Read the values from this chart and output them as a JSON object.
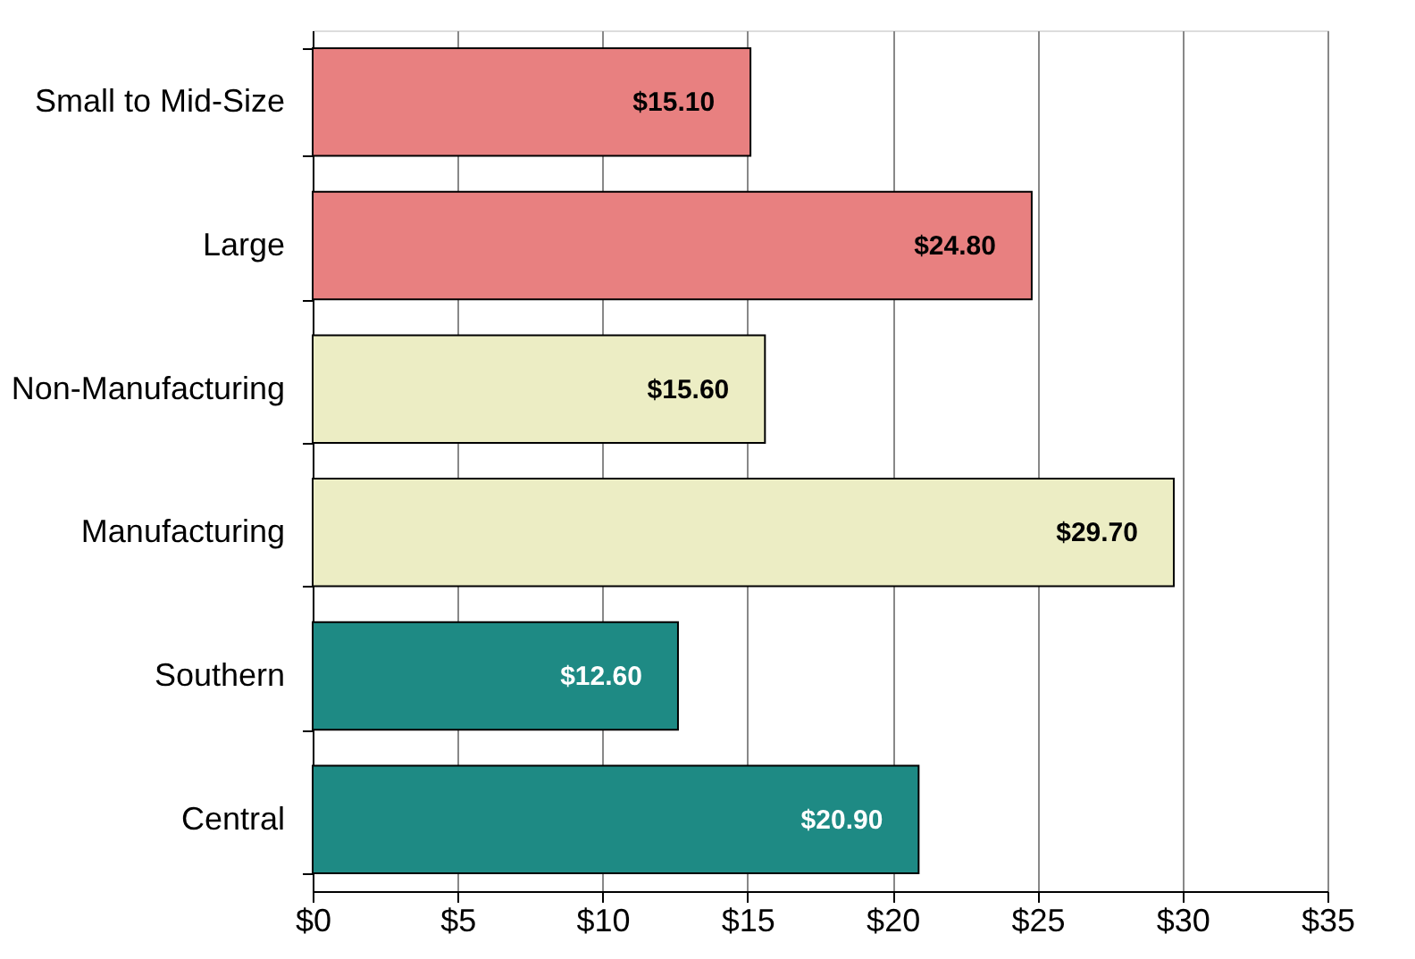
{
  "chart_data": {
    "type": "bar",
    "orientation": "horizontal",
    "categories": [
      "Small to Mid-Size",
      "Large",
      "Non-Manufacturing",
      "Manufacturing",
      "Southern",
      "Central"
    ],
    "values": [
      15.1,
      24.8,
      15.6,
      29.7,
      12.6,
      20.9
    ],
    "value_labels": [
      "$15.10",
      "$24.80",
      "$15.60",
      "$29.70",
      "$12.60",
      "$20.90"
    ],
    "colors": [
      "#e88080",
      "#e88080",
      "#ecedc4",
      "#ecedc4",
      "#1e8a84",
      "#1e8a84"
    ],
    "xlim": [
      0,
      35
    ],
    "xticks": [
      {
        "value": 0,
        "label": "$0"
      },
      {
        "value": 5,
        "label": "$5"
      },
      {
        "value": 10,
        "label": "$10"
      },
      {
        "value": 15,
        "label": "$15"
      },
      {
        "value": 20,
        "label": "$20"
      },
      {
        "value": 25,
        "label": "$25"
      },
      {
        "value": 30,
        "label": "$30"
      },
      {
        "value": 35,
        "label": "$35"
      }
    ],
    "grid": "x"
  }
}
